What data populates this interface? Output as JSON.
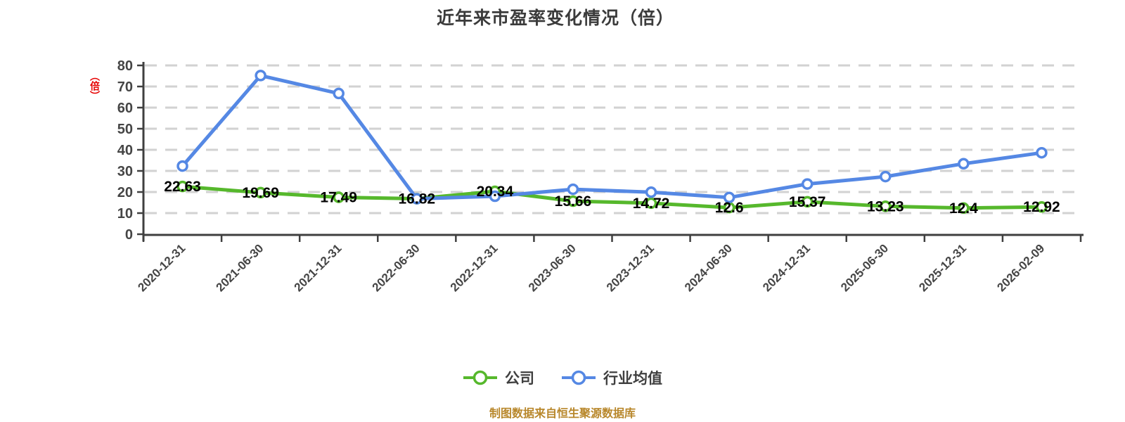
{
  "title": "近年来市盈率变化情况（倍）",
  "y_axis_unit": "（倍）",
  "source_note": "制图数据来自恒生聚源数据库",
  "colors": {
    "company": "#56b82c",
    "industry": "#5588e4",
    "grid": "#d2d2d2",
    "axis": "#3f3f3f",
    "tick_label": "#454545",
    "data_label": "#000000",
    "title": "#3b3b3b",
    "unit_label": "#e60000",
    "source_note": "#b8872b",
    "point_fill": "#ffffff"
  },
  "chart_data": {
    "type": "line",
    "title": "近年来市盈率变化情况（倍）",
    "ylabel": "（倍）",
    "ylim": [
      0,
      80
    ],
    "y_ticks": [
      0,
      10,
      20,
      30,
      40,
      50,
      60,
      70,
      80
    ],
    "grid": "horizontal-dashed",
    "legend_position": "bottom",
    "categories": [
      "2020-12-31",
      "2021-06-30",
      "2021-12-31",
      "2022-06-30",
      "2022-12-31",
      "2023-06-30",
      "2023-12-31",
      "2024-06-30",
      "2024-12-31",
      "2025-06-30",
      "2025-12-31",
      "2026-02-09"
    ],
    "series": [
      {
        "name": "公司",
        "color": "#56b82c",
        "values": [
          22.63,
          19.69,
          17.49,
          16.82,
          20.34,
          15.66,
          14.72,
          12.6,
          15.37,
          13.23,
          12.4,
          12.92
        ],
        "labels": [
          "22.63",
          "19.69",
          "17.49",
          "16.82",
          "20.34",
          "15.66",
          "14.72",
          "12.6",
          "15.37",
          "13.23",
          "12.4",
          "12.92"
        ],
        "labels_shown": true
      },
      {
        "name": "行业均值",
        "color": "#5588e4",
        "values": [
          32.3,
          75.2,
          66.7,
          16.8,
          18.0,
          21.3,
          19.9,
          17.4,
          23.8,
          27.3,
          33.4,
          38.6
        ],
        "labels_shown": false,
        "values_estimated": true
      }
    ]
  }
}
